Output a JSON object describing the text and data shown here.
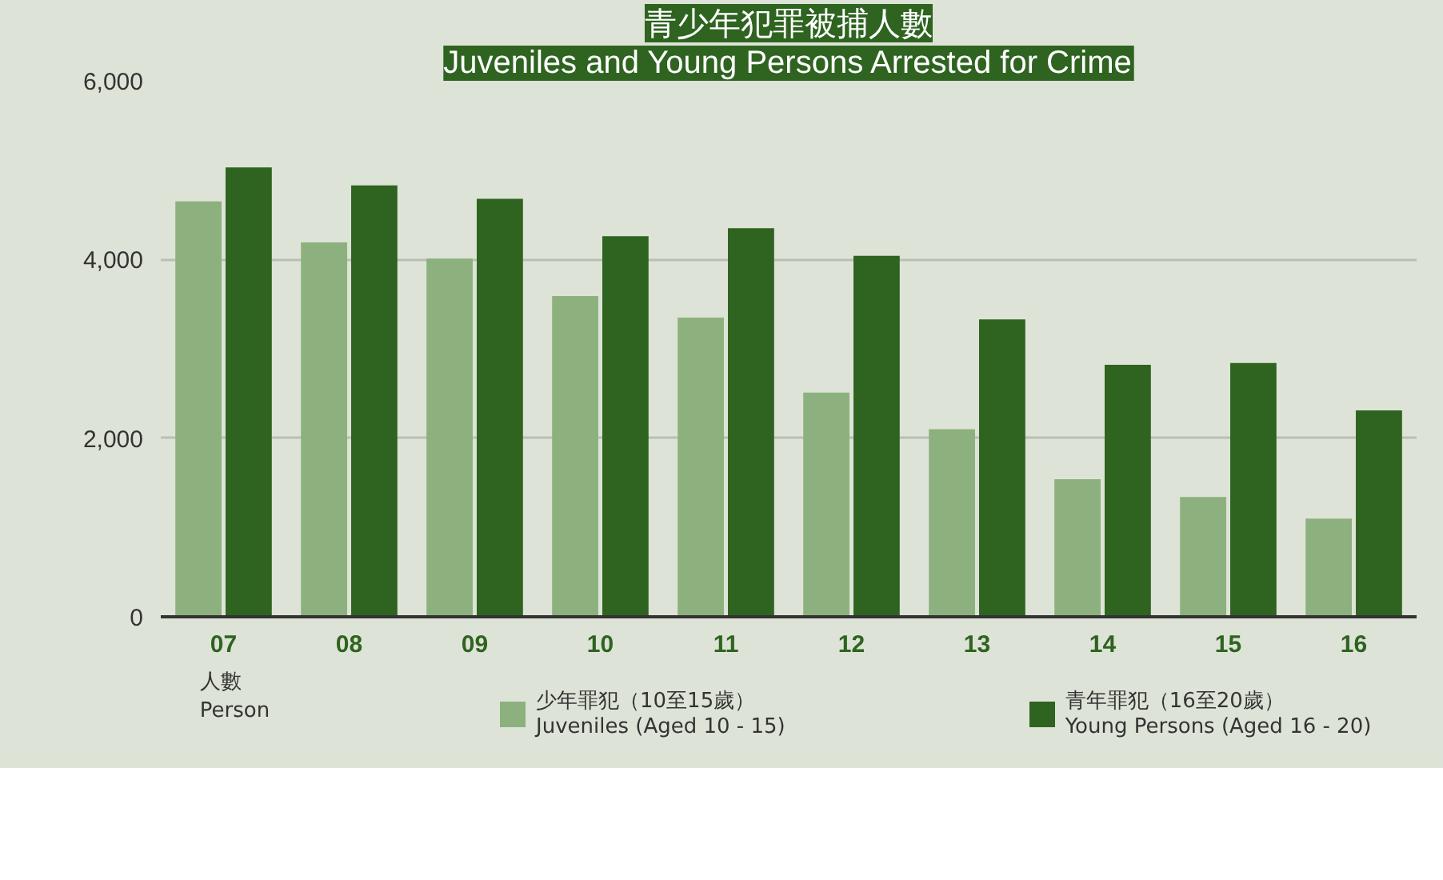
{
  "chart_data": {
    "type": "bar",
    "title": "青少年犯罪被捕人數",
    "subtitle": "Juveniles and Young Persons Arrested for Crime",
    "annotations": [
      "人數\nPerson"
    ],
    "categories": [
      "07",
      "08",
      "09",
      "10",
      "11",
      "12",
      "13",
      "14",
      "15",
      "16"
    ],
    "series": [
      {
        "name": "少年罪犯（10至15歲）\nJuveniles (Aged 10 - 15)",
        "color": "#8db17e",
        "values": [
          4650,
          4190,
          4010,
          3590,
          3350,
          2510,
          2100,
          1540,
          1340,
          1100
        ]
      },
      {
        "name": "青年罪犯（16至20歲）\nYoung Persons (Aged 16 - 20)",
        "color": "#2e6320",
        "values": [
          5030,
          4830,
          4680,
          4260,
          4350,
          4040,
          3330,
          2820,
          2840,
          2310
        ]
      }
    ],
    "ylim": [
      0,
      6000
    ],
    "yticks": [
      0,
      {
        "value": 2000,
        "label": "2,000"
      },
      {
        "value": 4000,
        "label": "4,000"
      },
      {
        "value": 6000,
        "label": "6,000"
      }
    ],
    "grid": "y",
    "legend": "bottom"
  }
}
